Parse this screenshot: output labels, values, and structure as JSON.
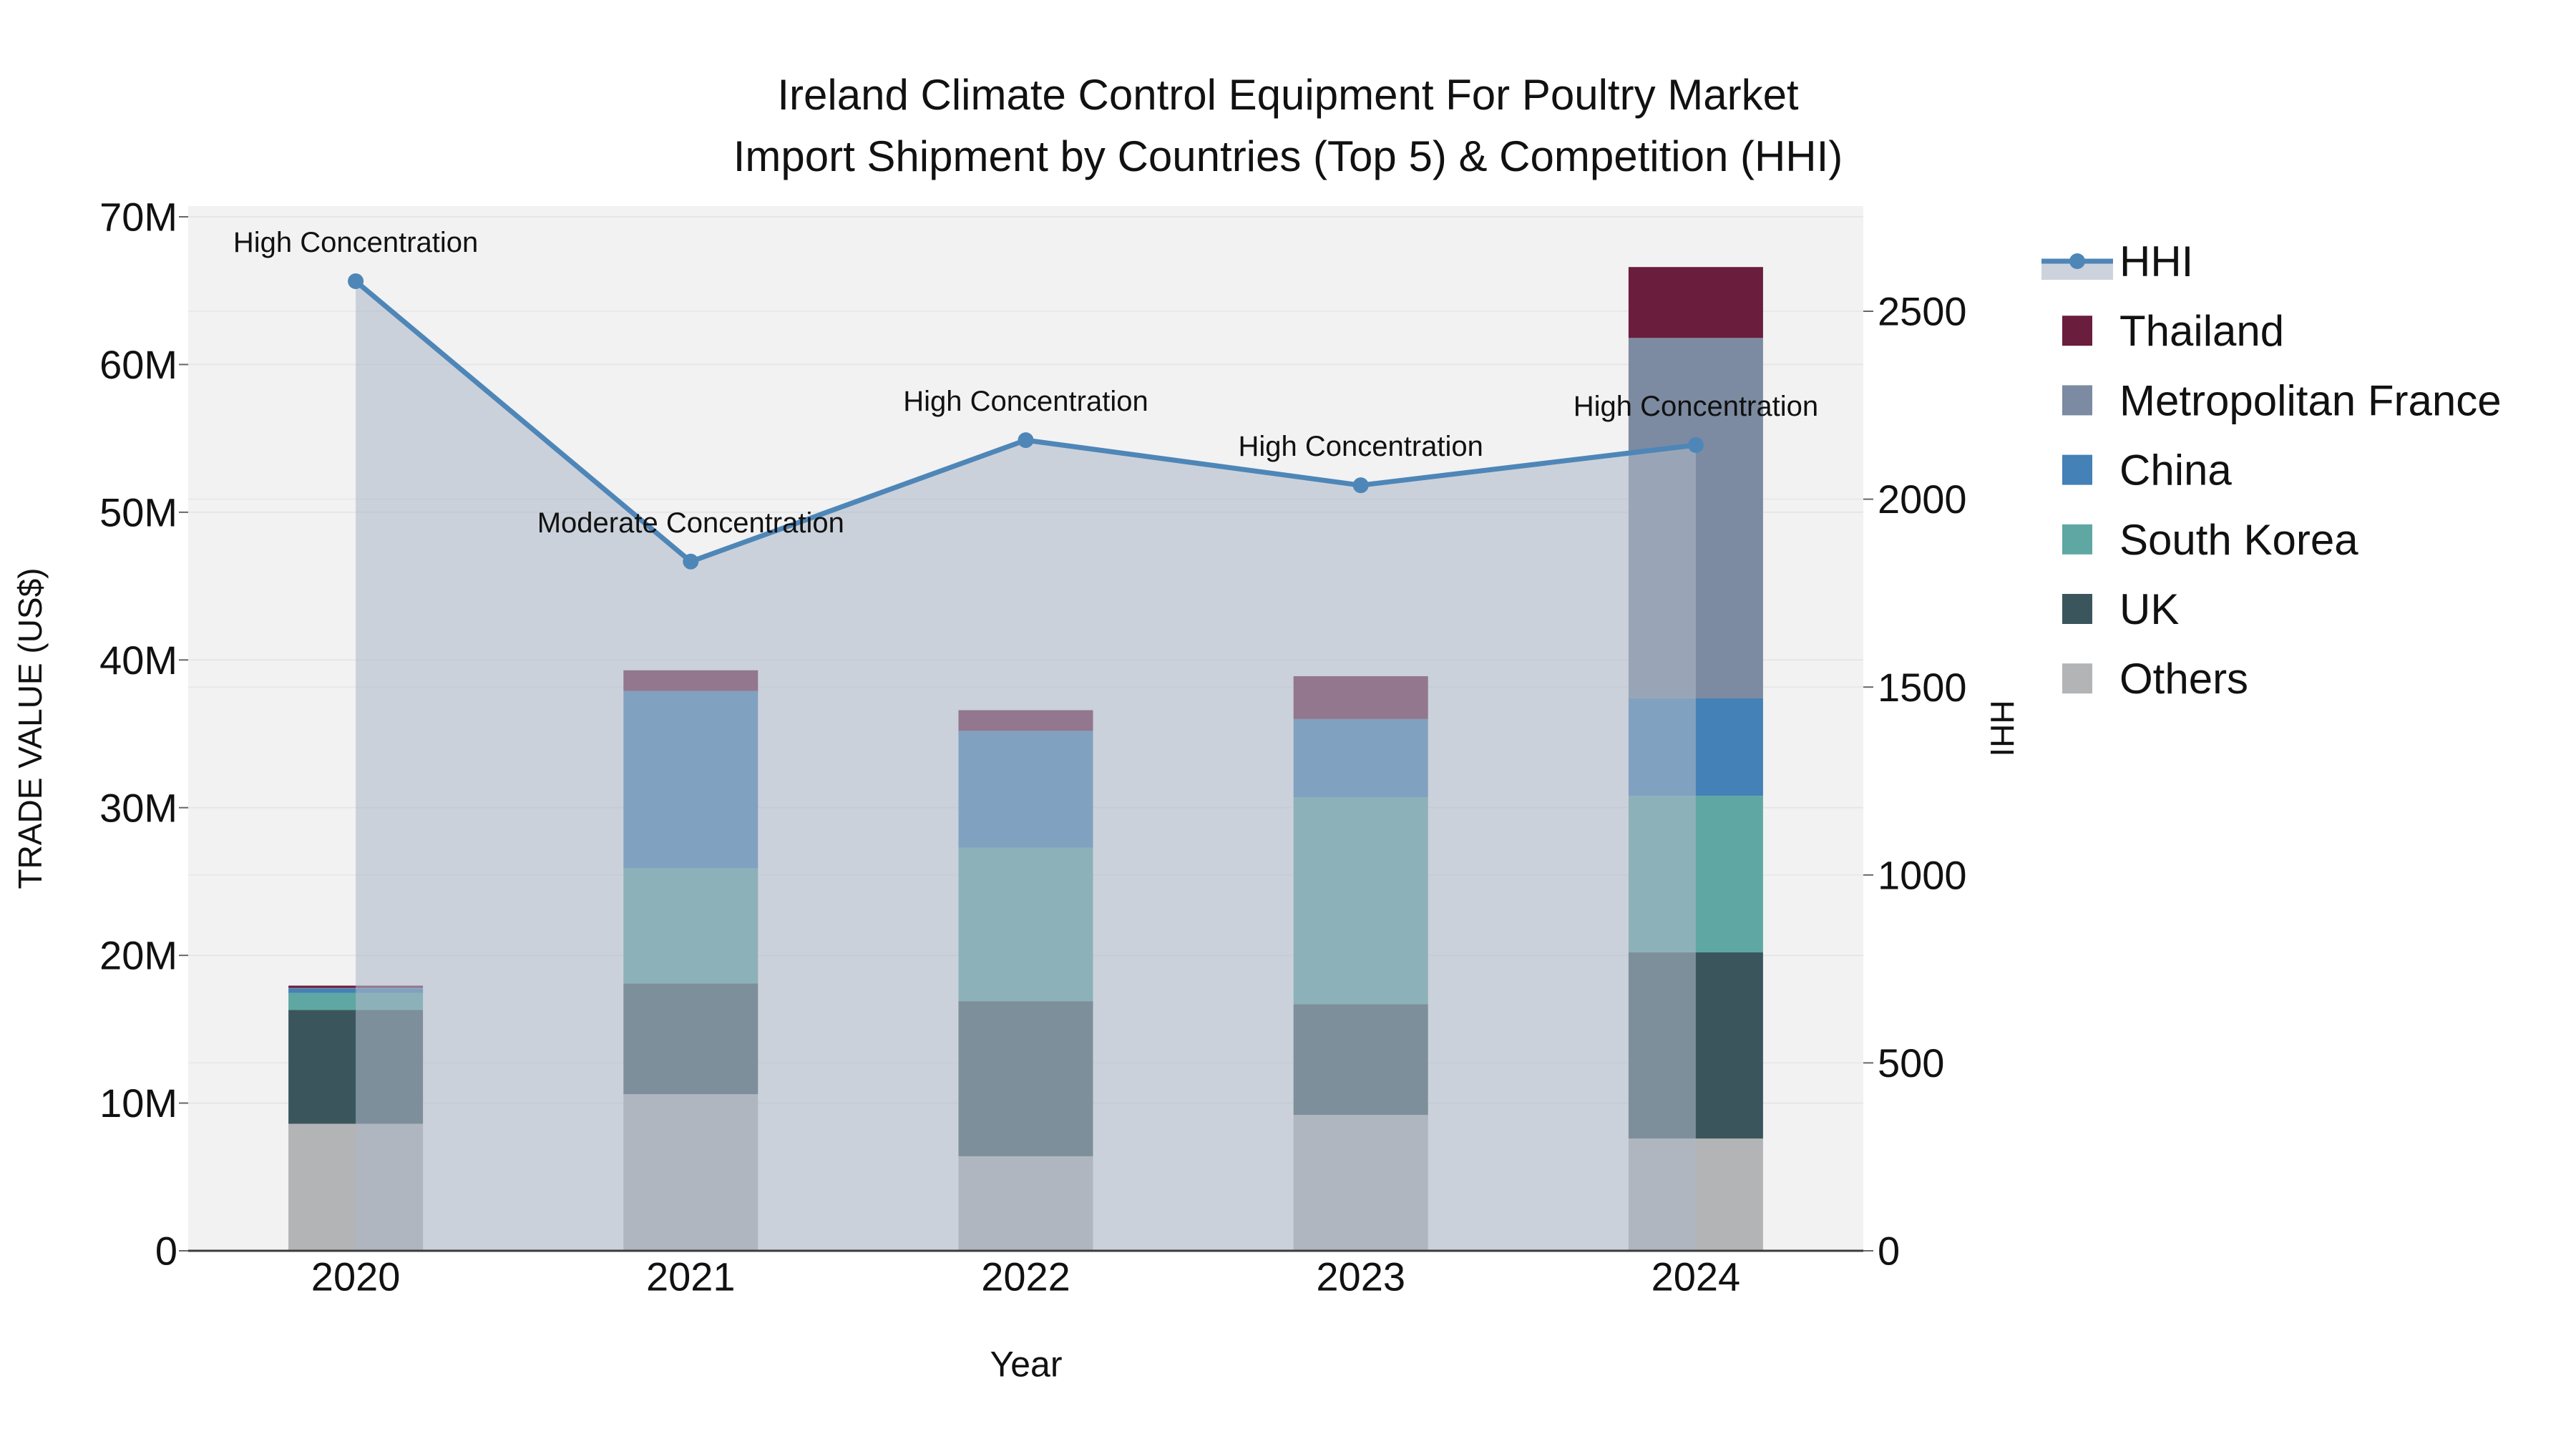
{
  "title": {
    "line1": "Ireland Climate Control Equipment For Poultry Market",
    "line2": "Import Shipment by Countries (Top 5) & Competition (HHI)"
  },
  "axes": {
    "x_title": "Year",
    "y_left_title": "TRADE VALUE (US$)",
    "y_right_title": "HHI",
    "x_tick_labels": [
      "2020",
      "2021",
      "2022",
      "2023",
      "2024"
    ],
    "y_left_ticks": [
      {
        "value_millions": 0,
        "label": "0"
      },
      {
        "value_millions": 10,
        "label": "10M"
      },
      {
        "value_millions": 20,
        "label": "20M"
      },
      {
        "value_millions": 30,
        "label": "30M"
      },
      {
        "value_millions": 40,
        "label": "40M"
      },
      {
        "value_millions": 50,
        "label": "50M"
      },
      {
        "value_millions": 60,
        "label": "60M"
      },
      {
        "value_millions": 70,
        "label": "70M"
      }
    ],
    "y_right_ticks": [
      {
        "value": 0,
        "label": "0"
      },
      {
        "value": 500,
        "label": "500"
      },
      {
        "value": 1000,
        "label": "1000"
      },
      {
        "value": 1500,
        "label": "1500"
      },
      {
        "value": 2000,
        "label": "2000"
      },
      {
        "value": 2500,
        "label": "2500"
      }
    ]
  },
  "chart_data": {
    "type": "bar",
    "subtype": "stacked-bars-with-line-overlay",
    "title": "Ireland Climate Control Equipment For Poultry Market Import Shipment by Countries (Top 5) & Competition (HHI)",
    "xlabel": "Year",
    "ylabel_left": "TRADE VALUE (US$)",
    "ylabel_right": "HHI",
    "categories": [
      "2020",
      "2021",
      "2022",
      "2023",
      "2024"
    ],
    "bar_unit": "million USD",
    "ylim_left_millions": [
      0,
      70
    ],
    "ylim_right": [
      0,
      2500
    ],
    "grid": "on",
    "legend_position": "outside-top-right",
    "series": [
      {
        "name": "Others",
        "color": "#B3B4B6",
        "values_millions": [
          8.6,
          10.6,
          6.4,
          9.2,
          7.6
        ]
      },
      {
        "name": "UK",
        "color": "#3A565C",
        "values_millions": [
          7.7,
          7.5,
          10.5,
          7.5,
          12.6
        ]
      },
      {
        "name": "South Korea",
        "color": "#5FA7A3",
        "values_millions": [
          1.15,
          7.8,
          10.4,
          14.0,
          10.6
        ]
      },
      {
        "name": "China",
        "color": "#4381B6",
        "values_millions": [
          0.3,
          12.0,
          7.9,
          5.3,
          6.6
        ]
      },
      {
        "name": "Metropolitan France",
        "color": "#7C8BA1",
        "values_millions": [
          0.05,
          0,
          0,
          0,
          24.4
        ]
      },
      {
        "name": "Thailand",
        "color": "#6B1D3E",
        "values_millions": [
          0.15,
          1.4,
          1.4,
          2.9,
          4.8
        ]
      }
    ],
    "line_series": {
      "name": "HHI",
      "color": "#4E86B8",
      "area_fill_color": "rgba(174,184,200,0.58)",
      "values": [
        2580,
        1834,
        2157,
        2037,
        2144
      ]
    },
    "annotations": [
      {
        "category": "2020",
        "text": "High Concentration"
      },
      {
        "category": "2021",
        "text": "Moderate Concentration"
      },
      {
        "category": "2022",
        "text": "High Concentration"
      },
      {
        "category": "2023",
        "text": "High Concentration"
      },
      {
        "category": "2024",
        "text": "High Concentration"
      }
    ]
  },
  "legend": {
    "items": [
      {
        "label": "HHI",
        "type": "line",
        "color": "#4E86B8",
        "band_color": "#CCD3DD"
      },
      {
        "label": "Thailand",
        "type": "swatch",
        "color": "#6B1D3E"
      },
      {
        "label": "Metropolitan France",
        "type": "swatch",
        "color": "#7C8BA1"
      },
      {
        "label": "China",
        "type": "swatch",
        "color": "#4381B6"
      },
      {
        "label": "South Korea",
        "type": "swatch",
        "color": "#5FA7A3"
      },
      {
        "label": "UK",
        "type": "swatch",
        "color": "#3A565C"
      },
      {
        "label": "Others",
        "type": "swatch",
        "color": "#B3B4B6"
      }
    ]
  },
  "colors": {
    "figure_bg": "#FFFFFF",
    "plot_bg": "#F2F2F2",
    "gridline": "#E6E6E8",
    "axis_line": "#3B3B3B",
    "tick_mark": "#666666",
    "text": "#111111"
  }
}
